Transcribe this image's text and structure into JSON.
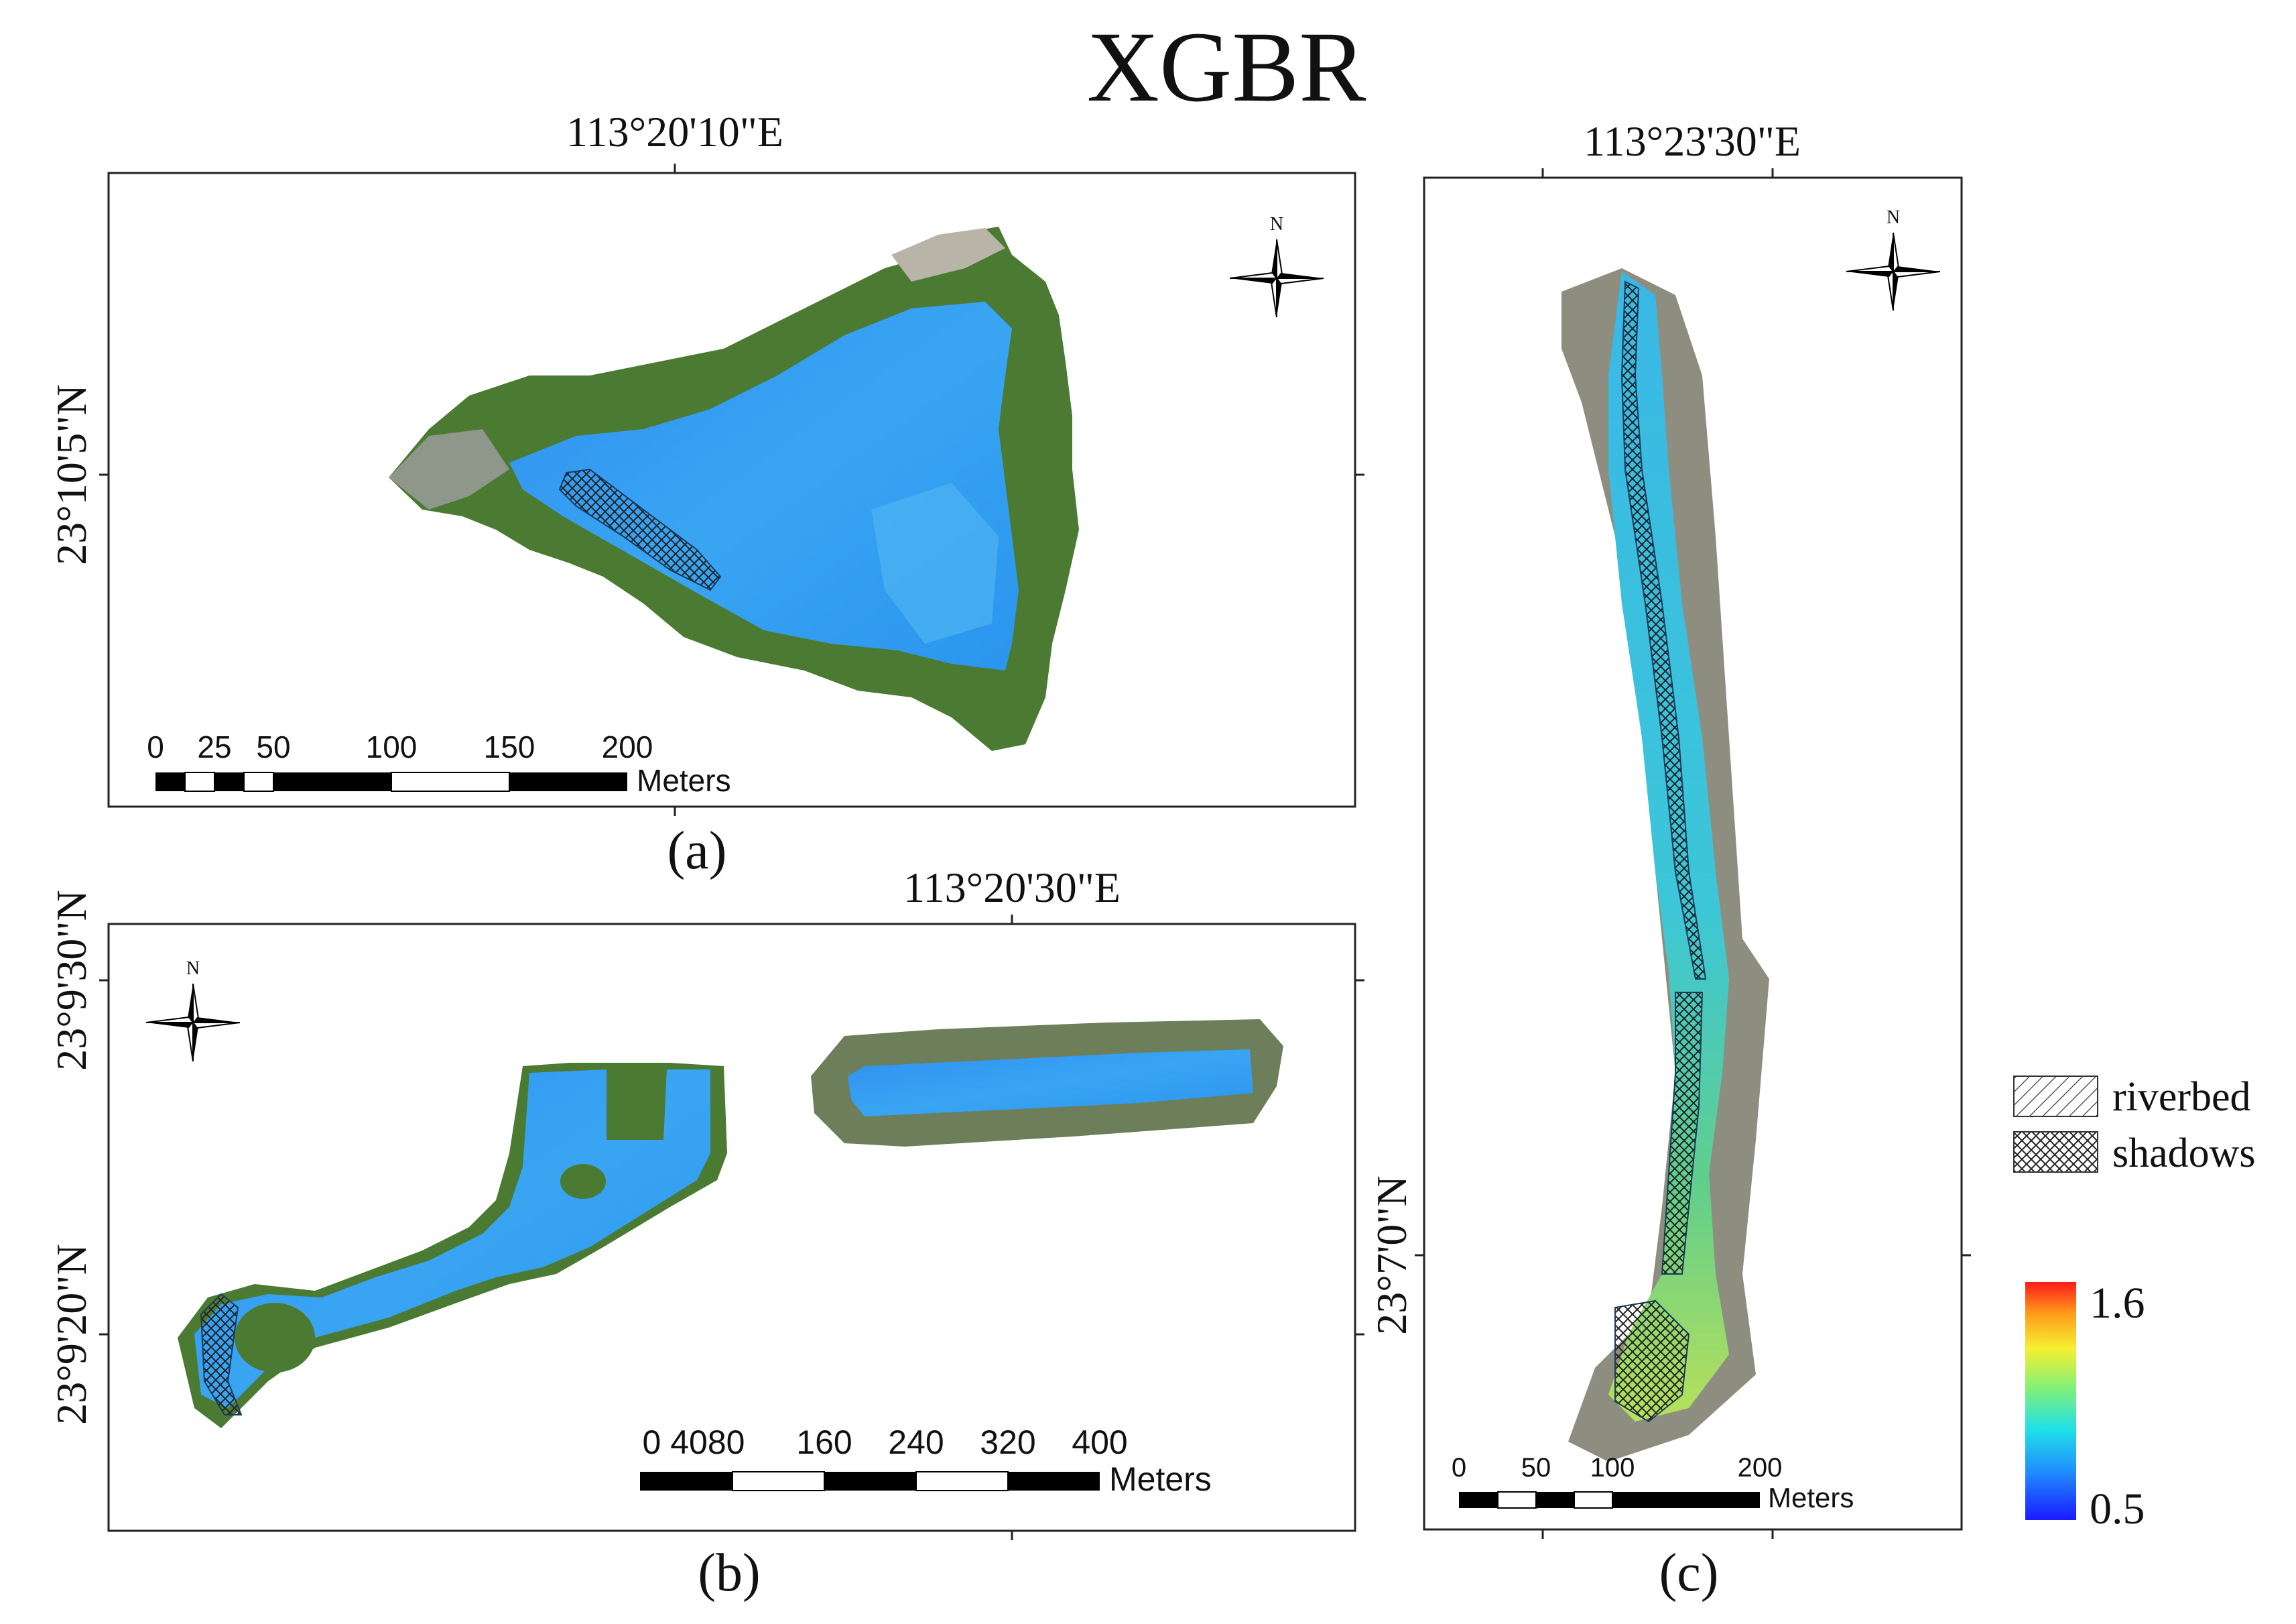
{
  "figure": {
    "title": "XGBR"
  },
  "panel_a": {
    "caption": "(a)",
    "lon_label": "113°20'10\"E",
    "lat_label": "23°10'5\"N",
    "north_label": "N",
    "scale": {
      "ticks": [
        "0",
        "25",
        "50",
        "100",
        "150",
        "200"
      ],
      "unit": "Meters"
    }
  },
  "panel_b": {
    "caption": "(b)",
    "lon_label": "113°20'30\"E",
    "lat_label_top": "23°9'30\"N",
    "lat_label_bottom": "23°9'20\"N",
    "north_label": "N",
    "scale": {
      "ticks": [
        "0 4080",
        "160",
        "240",
        "320",
        "400"
      ],
      "unit": "Meters"
    }
  },
  "panel_c": {
    "caption": "(c)",
    "lon_label": "113°23'30\"E",
    "lat_label": "23°7'0\"N",
    "north_label": "N",
    "scale": {
      "ticks": [
        "0",
        "50",
        "100",
        "200"
      ],
      "unit": "Meters"
    }
  },
  "legend": {
    "riverbed": "riverbed",
    "shadows": "shadows",
    "colorbar_max": "1.6",
    "colorbar_min": "0.5"
  },
  "colors": {
    "water": "#2f9cf2",
    "water_light": "#5fc6f0",
    "water_green": "#7fd46a",
    "vegetation": "#3f6b2a",
    "roof": "#b9b4a8"
  }
}
